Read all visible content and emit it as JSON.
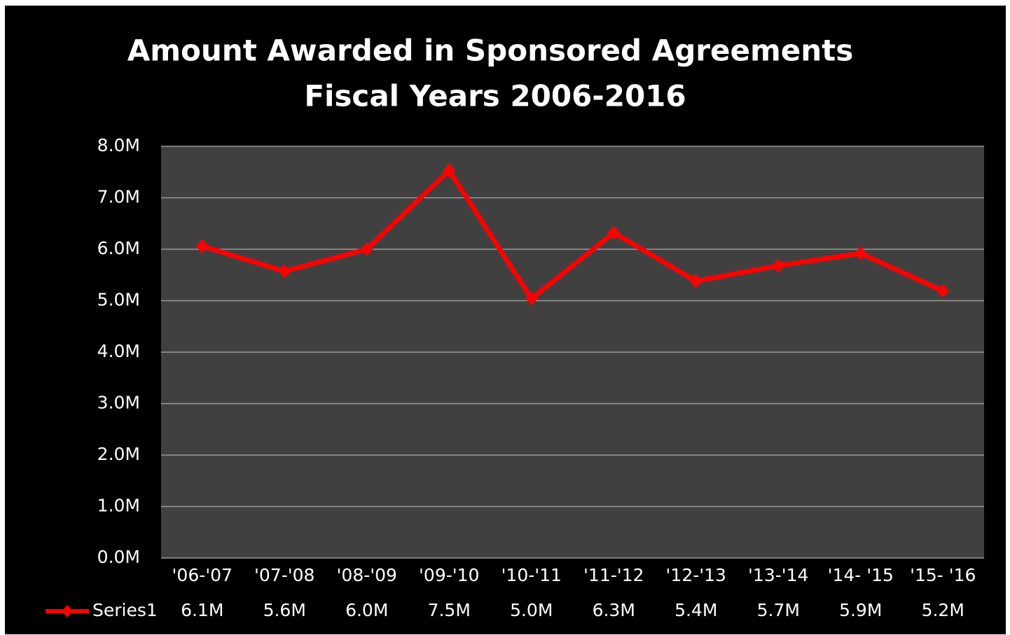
{
  "chart_data": {
    "type": "line",
    "title": "Amount Awarded in Sponsored Agreements",
    "subtitle": "Fiscal Years 2006-2016",
    "categories": [
      "'06-'07",
      "'07-'08",
      "'08-'09",
      "'09-'10",
      "'10-'11",
      "'11-'12",
      "'12-'13",
      "'13-'14",
      "'14- '15",
      "'15- '16"
    ],
    "series": [
      {
        "name": "Series1",
        "color": "#ff0000",
        "values": [
          6.06,
          5.57,
          6.0,
          7.53,
          5.04,
          6.32,
          5.38,
          5.68,
          5.92,
          5.19
        ],
        "value_labels": [
          "6.1M",
          "5.6M",
          "6.0M",
          "7.5M",
          "5.0M",
          "6.3M",
          "5.4M",
          "5.7M",
          "5.9M",
          "5.2M"
        ]
      }
    ],
    "ylim": [
      0,
      8
    ],
    "yticks": [
      {
        "value": 0,
        "label": "0.0M"
      },
      {
        "value": 1,
        "label": "1.0M"
      },
      {
        "value": 2,
        "label": "2.0M"
      },
      {
        "value": 3,
        "label": "3.0M"
      },
      {
        "value": 4,
        "label": "4.0M"
      },
      {
        "value": 5,
        "label": "5.0M"
      },
      {
        "value": 6,
        "label": "6.0M"
      },
      {
        "value": 7,
        "label": "7.0M"
      },
      {
        "value": 8,
        "label": "8.0M"
      }
    ],
    "grid": true
  }
}
